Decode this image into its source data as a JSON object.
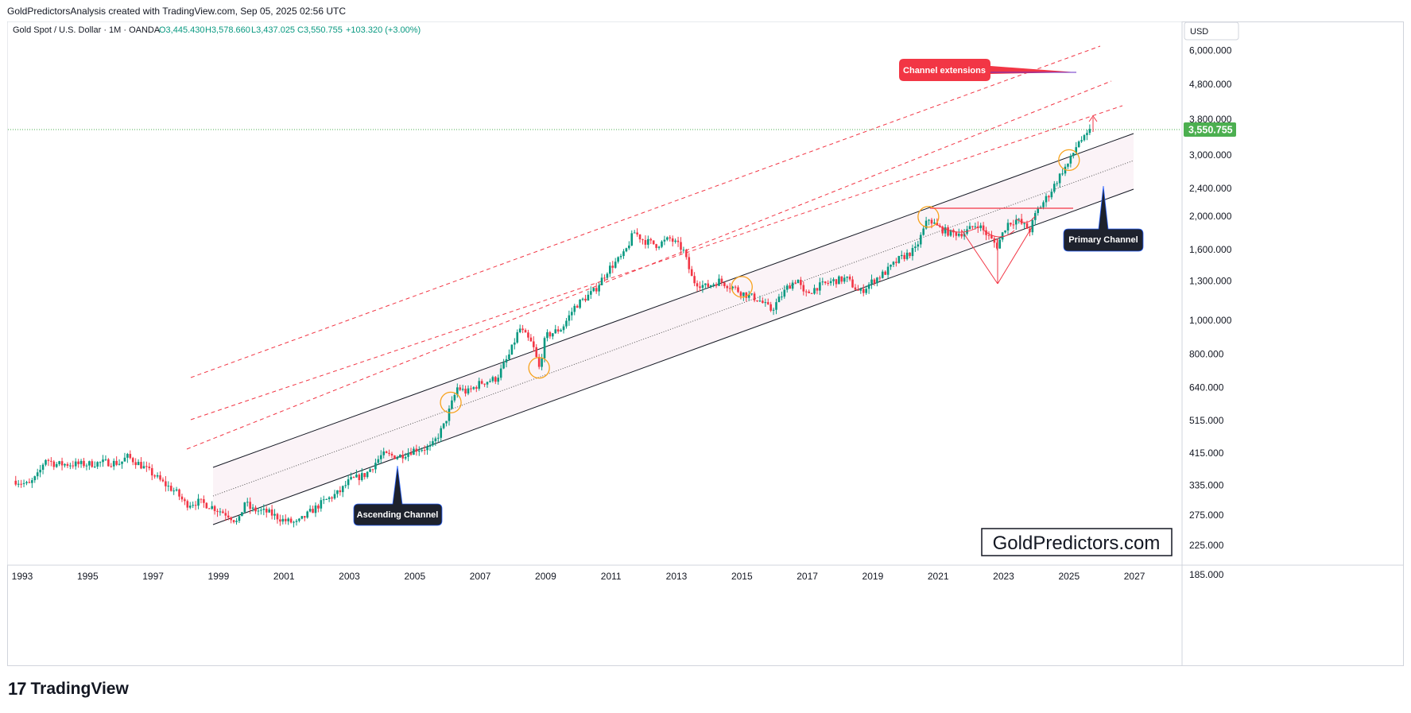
{
  "header": {
    "credit": "GoldPredictorsAnalysis created with TradingView.com, Sep 05, 2025 02:56 UTC"
  },
  "footer": {
    "brand_mark": "17",
    "brand_name": "TradingView"
  },
  "chart_data": {
    "type": "candlestick",
    "symbol_line": "Gold Spot / U.S. Dollar · 1M · OANDA",
    "ohlc": {
      "open": "O3,445.430",
      "high": "H3,578.660",
      "low": "L3,437.025",
      "close": "C3,550.755",
      "change": "+103.320 (+3.00%)"
    },
    "currency": "USD",
    "y_scale": "log",
    "ylim": [
      160,
      8000
    ],
    "xlim": [
      1992.8,
      2028.7
    ],
    "x_ticks": [
      "1993",
      "1995",
      "1997",
      "1999",
      "2001",
      "2003",
      "2005",
      "2007",
      "2009",
      "2011",
      "2013",
      "2015",
      "2017",
      "2019",
      "2021",
      "2023",
      "2025",
      "2027"
    ],
    "y_ticks": [
      "6,000.000",
      "4,800.000",
      "3,800.000",
      "3,000.000",
      "2,400.000",
      "2,000.000",
      "1,600.000",
      "1,300.000",
      "1,000.000",
      "800.000",
      "640.000",
      "515.000",
      "415.000",
      "335.000",
      "275.000",
      "225.000",
      "185.000"
    ],
    "last_price_label": "3,550.755",
    "last_price": 3550.755,
    "colors": {
      "up": "#089981",
      "down": "#f23645",
      "channel": "#131722",
      "extension": "#f23645",
      "circle": "#f7a21b",
      "price_line": "#4caf50"
    },
    "price_path": [
      [
        1992.8,
        345
      ],
      [
        1993.2,
        335
      ],
      [
        1993.5,
        360
      ],
      [
        1993.7,
        400
      ],
      [
        1994.0,
        385
      ],
      [
        1994.5,
        385
      ],
      [
        1995.0,
        385
      ],
      [
        1995.5,
        390
      ],
      [
        1996.0,
        388
      ],
      [
        1996.2,
        405
      ],
      [
        1996.5,
        390
      ],
      [
        1997.0,
        360
      ],
      [
        1997.3,
        340
      ],
      [
        1997.7,
        320
      ],
      [
        1998.0,
        295
      ],
      [
        1998.4,
        300
      ],
      [
        1998.8,
        290
      ],
      [
        1999.3,
        275
      ],
      [
        1999.6,
        260
      ],
      [
        1999.8,
        300
      ],
      [
        2000.0,
        285
      ],
      [
        2000.5,
        280
      ],
      [
        2001.0,
        265
      ],
      [
        2001.4,
        260
      ],
      [
        2001.8,
        280
      ],
      [
        2002.2,
        300
      ],
      [
        2002.7,
        320
      ],
      [
        2003.0,
        345
      ],
      [
        2003.5,
        360
      ],
      [
        2004.0,
        410
      ],
      [
        2004.5,
        405
      ],
      [
        2005.0,
        425
      ],
      [
        2005.5,
        430
      ],
      [
        2005.9,
        500
      ],
      [
        2006.3,
        640
      ],
      [
        2006.6,
        620
      ],
      [
        2007.0,
        660
      ],
      [
        2007.5,
        680
      ],
      [
        2007.9,
        800
      ],
      [
        2008.2,
        950
      ],
      [
        2008.6,
        850
      ],
      [
        2008.8,
        730
      ],
      [
        2009.0,
        900
      ],
      [
        2009.5,
        950
      ],
      [
        2009.9,
        1100
      ],
      [
        2010.5,
        1220
      ],
      [
        2010.9,
        1400
      ],
      [
        2011.4,
        1550
      ],
      [
        2011.7,
        1800
      ],
      [
        2012.0,
        1700
      ],
      [
        2012.4,
        1650
      ],
      [
        2012.8,
        1720
      ],
      [
        2013.2,
        1600
      ],
      [
        2013.5,
        1300
      ],
      [
        2013.9,
        1250
      ],
      [
        2014.3,
        1300
      ],
      [
        2014.7,
        1250
      ],
      [
        2015.0,
        1200
      ],
      [
        2015.5,
        1150
      ],
      [
        2015.9,
        1070
      ],
      [
        2016.4,
        1250
      ],
      [
        2016.7,
        1320
      ],
      [
        2016.9,
        1180
      ],
      [
        2017.3,
        1250
      ],
      [
        2017.8,
        1300
      ],
      [
        2018.2,
        1320
      ],
      [
        2018.6,
        1200
      ],
      [
        2019.0,
        1300
      ],
      [
        2019.4,
        1380
      ],
      [
        2019.8,
        1500
      ],
      [
        2020.3,
        1600
      ],
      [
        2020.7,
        1970
      ],
      [
        2021.0,
        1850
      ],
      [
        2021.4,
        1780
      ],
      [
        2021.8,
        1790
      ],
      [
        2022.2,
        1900
      ],
      [
        2022.6,
        1720
      ],
      [
        2022.8,
        1640
      ],
      [
        2023.1,
        1900
      ],
      [
        2023.4,
        1950
      ],
      [
        2023.8,
        1820
      ],
      [
        2024.0,
        2050
      ],
      [
        2024.4,
        2320
      ],
      [
        2024.8,
        2700
      ],
      [
        2025.0,
        2850
      ],
      [
        2025.3,
        3300
      ],
      [
        2025.5,
        3350
      ],
      [
        2025.67,
        3550
      ]
    ],
    "circle_dates": [
      [
        2006.1,
        580
      ],
      [
        2008.8,
        730
      ],
      [
        2015.0,
        1250
      ],
      [
        2020.7,
        1990
      ],
      [
        2025.0,
        2900
      ]
    ],
    "annotations": {
      "channel_extensions": "Channel extensions",
      "primary_channel": "Primary Channel",
      "ascending_channel": "Ascending Channel",
      "watermark": "GoldPredictors.com"
    }
  }
}
